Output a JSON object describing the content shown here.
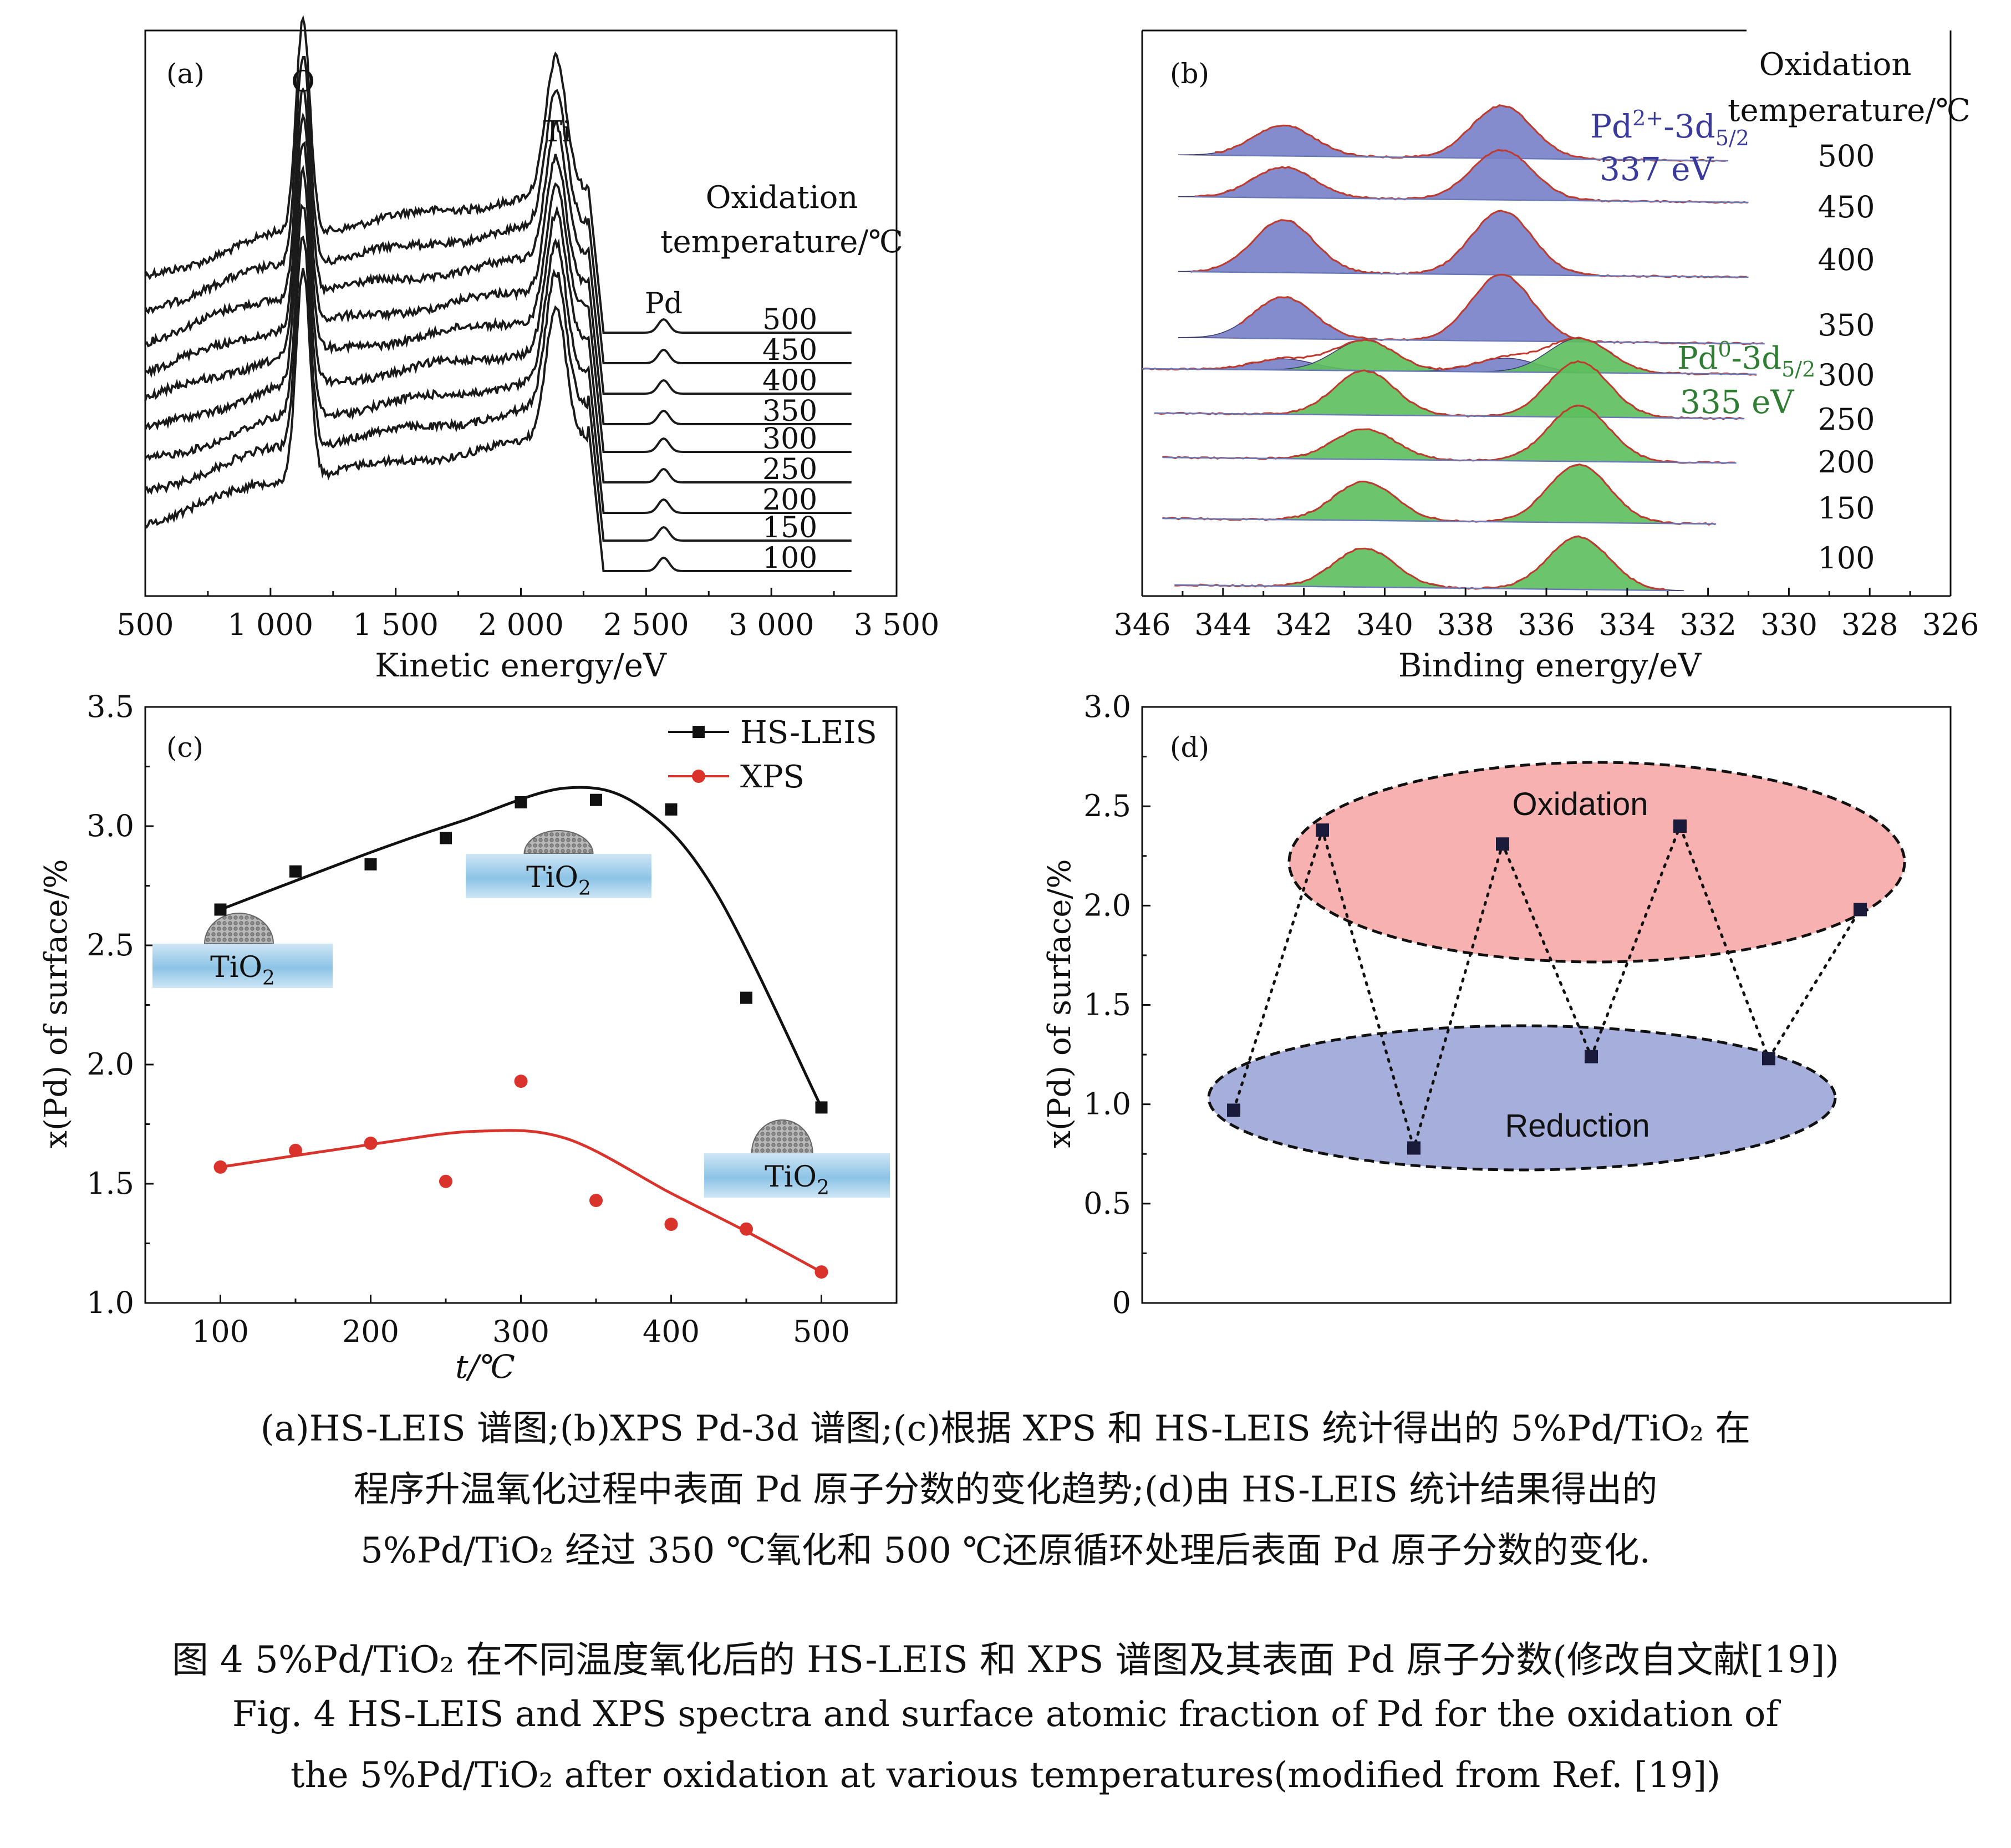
{
  "chart_data": [
    {
      "panel": "(a)",
      "type": "line",
      "xlabel": "Kinetic energy/eV",
      "xlim": [
        500,
        3500
      ],
      "xticks": [
        500,
        1000,
        1500,
        2000,
        2500,
        3000,
        3500
      ],
      "xtick_labels": [
        "500",
        "1 000",
        "1 500",
        "2 000",
        "2 500",
        "3 000",
        "3 500"
      ],
      "ylabel": "",
      "peak_labels": [
        {
          "text": "O",
          "x": 1130
        },
        {
          "text": "Ti",
          "x": 2145
        },
        {
          "text": "Pd",
          "x": 2570
        }
      ],
      "legend_title": [
        "Oxidation",
        "temperature/℃"
      ],
      "series": [
        {
          "name": "500"
        },
        {
          "name": "450"
        },
        {
          "name": "400"
        },
        {
          "name": "350"
        },
        {
          "name": "300"
        },
        {
          "name": "250"
        },
        {
          "name": "200"
        },
        {
          "name": "150"
        },
        {
          "name": "100"
        }
      ]
    },
    {
      "panel": "(b)",
      "type": "area",
      "xlabel": "Binding energy/eV",
      "xlim": [
        346,
        326
      ],
      "xticks": [
        346,
        344,
        342,
        340,
        338,
        336,
        334,
        332,
        330,
        328,
        326
      ],
      "ylabel": "",
      "legend_title": [
        "Oxidation",
        "temperature/℃"
      ],
      "peak_annotations": [
        {
          "text": "Pd2+-3d5/2",
          "energy": "337 eV",
          "color": "#3a3a9a"
        },
        {
          "text": "Pd0-3d5/2",
          "energy": "335 eV",
          "color": "#2e7d32"
        }
      ],
      "series": [
        {
          "name": "500",
          "state": "Pd2+"
        },
        {
          "name": "450",
          "state": "Pd2+"
        },
        {
          "name": "400",
          "state": "Pd2+"
        },
        {
          "name": "350",
          "state": "Pd2+"
        },
        {
          "name": "300",
          "state": "mixed"
        },
        {
          "name": "250",
          "state": "Pd0"
        },
        {
          "name": "200",
          "state": "Pd0"
        },
        {
          "name": "150",
          "state": "Pd0"
        },
        {
          "name": "100",
          "state": "Pd0"
        }
      ],
      "colors": {
        "pd2": "#7880c8",
        "pd0": "#5cbf5c",
        "fit": "#c0392b"
      }
    },
    {
      "panel": "(c)",
      "type": "scatter",
      "xlabel": "t/℃",
      "ylabel": "x(Pd) of surface/%",
      "xlim": [
        50,
        550
      ],
      "ylim": [
        1.0,
        3.5
      ],
      "xticks": [
        100,
        200,
        300,
        400,
        500
      ],
      "yticks": [
        "1.0",
        "1.5",
        "2.0",
        "2.5",
        "3.0",
        "3.5"
      ],
      "x": [
        100,
        150,
        200,
        250,
        300,
        350,
        400,
        450,
        500
      ],
      "series": [
        {
          "name": "HS-LEIS",
          "color": "#111111",
          "marker": "square",
          "values": [
            2.65,
            2.81,
            2.84,
            2.95,
            3.1,
            3.11,
            3.07,
            2.28,
            1.82
          ],
          "fit": [
            [
              100,
              2.65
            ],
            [
              200,
              2.89
            ],
            [
              260,
              3.02
            ],
            [
              330,
              3.16
            ],
            [
              380,
              3.08
            ],
            [
              430,
              2.72
            ],
            [
              500,
              1.82
            ]
          ]
        },
        {
          "name": "XPS",
          "color": "#d9332b",
          "marker": "circle",
          "values": [
            1.57,
            1.64,
            1.67,
            1.51,
            1.93,
            1.43,
            1.33,
            1.31,
            1.13
          ],
          "fit": [
            [
              100,
              1.57
            ],
            [
              200,
              1.665
            ],
            [
              270,
              1.72
            ],
            [
              330,
              1.69
            ],
            [
              400,
              1.46
            ],
            [
              450,
              1.3
            ],
            [
              500,
              1.13
            ]
          ]
        }
      ],
      "insets": [
        "TiO2",
        "TiO2",
        "TiO2"
      ]
    },
    {
      "panel": "(d)",
      "type": "scatter",
      "xlabel": "",
      "ylabel": "x(Pd) of surface/%",
      "ylim": [
        0,
        3.0
      ],
      "yticks": [
        "0",
        "0.5",
        "1.0",
        "1.5",
        "2.0",
        "2.5",
        "3.0"
      ],
      "values": [
        0.97,
        2.38,
        0.78,
        2.31,
        1.24,
        2.4,
        1.23,
        1.98
      ],
      "groups": [
        {
          "label": "Oxidation",
          "color": "#f7b1b1"
        },
        {
          "label": "Reduction",
          "color": "#a6aedb"
        }
      ]
    }
  ],
  "captions": {
    "sub_line1": "(a)HS-LEIS 谱图;(b)XPS Pd-3d 谱图;(c)根据 XPS 和 HS-LEIS 统计得出的 5%Pd/TiO₂ 在",
    "sub_line2": "程序升温氧化过程中表面 Pd 原子分数的变化趋势;(d)由 HS-LEIS 统计结果得出的",
    "sub_line3": "5%Pd/TiO₂ 经过 350 ℃氧化和 500 ℃还原循环处理后表面 Pd 原子分数的变化.",
    "cn_title": "图 4   5%Pd/TiO₂ 在不同温度氧化后的 HS-LEIS 和 XPS 谱图及其表面 Pd 原子分数(修改自文献[19])",
    "en_title1": "Fig. 4  HS-LEIS and XPS spectra and surface atomic fraction of Pd for the oxidation of",
    "en_title2": "the 5%Pd/TiO₂ after oxidation at various temperatures(modified from Ref. [19])"
  }
}
